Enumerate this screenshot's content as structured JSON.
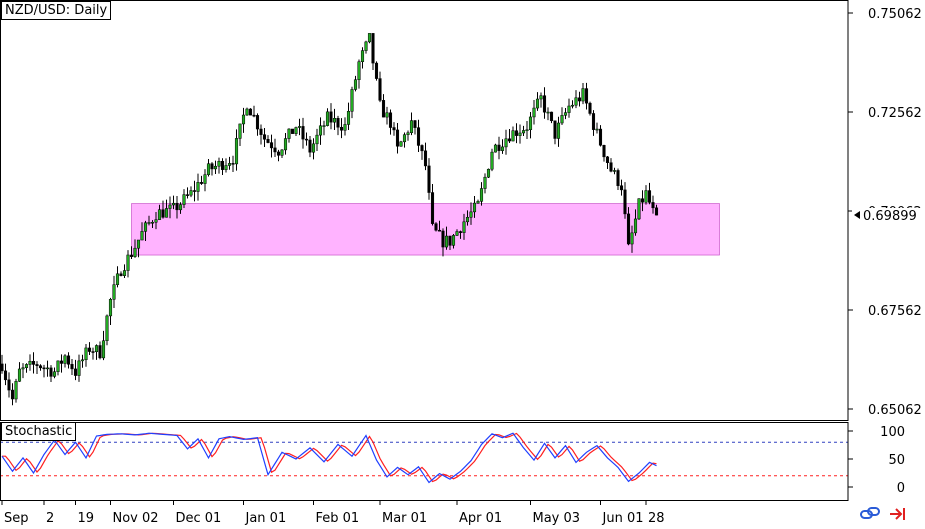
{
  "window": {
    "title": "NZD/USD: Daily",
    "indicator_title": "Stochastic",
    "current_price": "0.69899"
  },
  "price_axis": {
    "labels": [
      "0.75062",
      "0.72562",
      "0.70062",
      "0.67562",
      "0.65062"
    ],
    "values": [
      0.75062,
      0.72562,
      0.70062,
      0.67562,
      0.65062
    ]
  },
  "stoch_axis": {
    "labels": [
      "100",
      "50",
      "0"
    ],
    "values": [
      100,
      50,
      0
    ],
    "upper_level": 80,
    "lower_level": 20
  },
  "time_axis": {
    "labels": [
      "Sep",
      "2",
      "19",
      "Nov 02",
      "Dec 01",
      "Jan 01",
      "Feb 01",
      "Mar 01",
      "Apr 01",
      "May 03",
      "Jun 01",
      "28"
    ],
    "positions": [
      0,
      12,
      21,
      31,
      49,
      69,
      89,
      108,
      130,
      151,
      171,
      184
    ]
  },
  "zone": {
    "price_high": 0.7025,
    "price_low": 0.6895,
    "bar_start": 37,
    "bar_end": 205,
    "color": "#ffb3ff"
  },
  "colors": {
    "bull_body": "#22aa22",
    "bear_body": "#000000",
    "wick": "#000000",
    "stoch_main": "#2040ff",
    "stoch_signal": "#ff2020",
    "level_upper": "#3040c0",
    "level_lower": "#ff2020",
    "zone": "#ffb3ff"
  },
  "icons": [
    "chain-link-icon",
    "arrow-to-end-icon"
  ],
  "chart_data": {
    "type": "line",
    "title": "NZD/USD: Daily",
    "xlabel": "",
    "ylabel": "",
    "ylim": [
      0.6456,
      0.7543
    ],
    "anchors": [
      [
        0,
        0.662
      ],
      [
        3,
        0.653
      ],
      [
        5,
        0.66
      ],
      [
        10,
        0.662
      ],
      [
        15,
        0.66
      ],
      [
        18,
        0.664
      ],
      [
        21,
        0.66
      ],
      [
        25,
        0.666
      ],
      [
        28,
        0.665
      ],
      [
        31,
        0.678
      ],
      [
        34,
        0.686
      ],
      [
        37,
        0.69
      ],
      [
        40,
        0.695
      ],
      [
        44,
        0.7
      ],
      [
        49,
        0.701
      ],
      [
        54,
        0.705
      ],
      [
        59,
        0.711
      ],
      [
        66,
        0.714
      ],
      [
        70,
        0.728
      ],
      [
        75,
        0.719
      ],
      [
        79,
        0.716
      ],
      [
        84,
        0.722
      ],
      [
        88,
        0.716
      ],
      [
        93,
        0.724
      ],
      [
        98,
        0.722
      ],
      [
        102,
        0.738
      ],
      [
        105,
        0.744
      ],
      [
        108,
        0.727
      ],
      [
        111,
        0.723
      ],
      [
        113,
        0.716
      ],
      [
        117,
        0.723
      ],
      [
        121,
        0.712
      ],
      [
        123,
        0.696
      ],
      [
        126,
        0.693
      ],
      [
        128,
        0.693
      ],
      [
        132,
        0.698
      ],
      [
        136,
        0.702
      ],
      [
        140,
        0.716
      ],
      [
        145,
        0.72
      ],
      [
        150,
        0.722
      ],
      [
        154,
        0.729
      ],
      [
        158,
        0.72
      ],
      [
        162,
        0.727
      ],
      [
        166,
        0.73
      ],
      [
        170,
        0.72
      ],
      [
        174,
        0.711
      ],
      [
        177,
        0.707
      ],
      [
        179,
        0.691
      ],
      [
        182,
        0.702
      ],
      [
        184,
        0.705
      ],
      [
        187,
        0.698
      ]
    ],
    "stochastic": [
      [
        0,
        55
      ],
      [
        3,
        28
      ],
      [
        6,
        52
      ],
      [
        9,
        25
      ],
      [
        12,
        58
      ],
      [
        15,
        84
      ],
      [
        18,
        58
      ],
      [
        21,
        80
      ],
      [
        24,
        52
      ],
      [
        27,
        91
      ],
      [
        30,
        94
      ],
      [
        34,
        95
      ],
      [
        38,
        93
      ],
      [
        42,
        96
      ],
      [
        46,
        94
      ],
      [
        50,
        92
      ],
      [
        53,
        68
      ],
      [
        56,
        86
      ],
      [
        59,
        52
      ],
      [
        62,
        86
      ],
      [
        65,
        90
      ],
      [
        69,
        85
      ],
      [
        73,
        88
      ],
      [
        76,
        22
      ],
      [
        80,
        62
      ],
      [
        84,
        50
      ],
      [
        88,
        70
      ],
      [
        92,
        45
      ],
      [
        96,
        76
      ],
      [
        100,
        55
      ],
      [
        104,
        92
      ],
      [
        107,
        48
      ],
      [
        110,
        18
      ],
      [
        113,
        35
      ],
      [
        116,
        22
      ],
      [
        119,
        36
      ],
      [
        122,
        8
      ],
      [
        125,
        24
      ],
      [
        128,
        14
      ],
      [
        131,
        28
      ],
      [
        134,
        47
      ],
      [
        137,
        76
      ],
      [
        140,
        95
      ],
      [
        143,
        88
      ],
      [
        146,
        96
      ],
      [
        149,
        70
      ],
      [
        152,
        48
      ],
      [
        155,
        78
      ],
      [
        158,
        52
      ],
      [
        161,
        74
      ],
      [
        164,
        44
      ],
      [
        167,
        62
      ],
      [
        170,
        74
      ],
      [
        173,
        52
      ],
      [
        176,
        35
      ],
      [
        179,
        10
      ],
      [
        182,
        25
      ],
      [
        185,
        44
      ],
      [
        187,
        38
      ]
    ]
  }
}
